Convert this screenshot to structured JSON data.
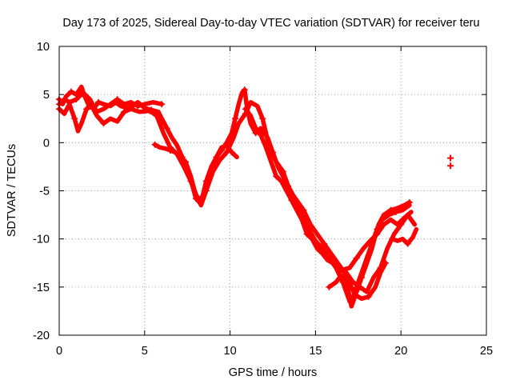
{
  "chart_data": {
    "type": "scatter",
    "title": "Day 173 of 2025, Sidereal Day-to-day VTEC variation (SDTVAR) for receiver teru",
    "xlabel": "GPS time / hours",
    "ylabel": "SDTVAR / TECUs",
    "xlim": [
      0,
      25
    ],
    "ylim": [
      -20,
      10
    ],
    "x_ticks": [
      0,
      5,
      10,
      15,
      20,
      25
    ],
    "y_ticks": [
      -20,
      -15,
      -10,
      -5,
      0,
      5,
      10
    ],
    "grid": true,
    "marker": "plus",
    "series": [
      {
        "name": "SDTVAR",
        "color": "#ff0000",
        "tracks": [
          [
            [
              0,
              4.5
            ],
            [
              0.2,
              4.0
            ],
            [
              0.4,
              4.8
            ],
            [
              0.7,
              5.3
            ],
            [
              1.0,
              5.0
            ],
            [
              1.3,
              5.8
            ],
            [
              1.5,
              4.8
            ],
            [
              1.7,
              4.0
            ],
            [
              2.0,
              3.5
            ],
            [
              2.3,
              4.2
            ],
            [
              2.6,
              4.0
            ],
            [
              3.0,
              3.8
            ],
            [
              3.3,
              4.2
            ],
            [
              3.6,
              3.8
            ],
            [
              4.0,
              3.6
            ],
            [
              4.3,
              3.8
            ],
            [
              4.6,
              4.2
            ],
            [
              5.0,
              3.6
            ],
            [
              5.4,
              3.4
            ],
            [
              5.8,
              3.2
            ],
            [
              6.0,
              2.5
            ],
            [
              6.3,
              1.5
            ],
            [
              6.6,
              0.5
            ],
            [
              6.9,
              -0.3
            ],
            [
              7.2,
              -1.5
            ],
            [
              7.5,
              -3.0
            ],
            [
              7.8,
              -4.5
            ],
            [
              8.0,
              -5.8
            ],
            [
              8.2,
              -6.2
            ],
            [
              8.4,
              -5.5
            ],
            [
              8.6,
              -4.0
            ],
            [
              8.9,
              -2.5
            ],
            [
              9.2,
              -1.5
            ],
            [
              9.5,
              -0.8
            ],
            [
              9.8,
              0.0
            ],
            [
              10.1,
              1.0
            ],
            [
              10.3,
              2.5
            ],
            [
              10.5,
              4.0
            ],
            [
              10.7,
              5.2
            ],
            [
              10.85,
              5.5
            ],
            [
              11.0,
              3.5
            ],
            [
              11.2,
              2.0
            ],
            [
              11.5,
              1.0
            ],
            [
              11.8,
              1.5
            ],
            [
              12.2,
              0.5
            ],
            [
              12.5,
              -1.0
            ],
            [
              12.8,
              -2.5
            ],
            [
              13.1,
              -3.5
            ],
            [
              13.4,
              -4.5
            ],
            [
              13.7,
              -5.5
            ],
            [
              14.0,
              -6.5
            ],
            [
              14.3,
              -7.8
            ],
            [
              14.6,
              -9.0
            ],
            [
              15.0,
              -10.2
            ],
            [
              15.4,
              -11.0
            ],
            [
              15.8,
              -12.0
            ],
            [
              16.2,
              -13.0
            ],
            [
              16.6,
              -14.5
            ],
            [
              17.0,
              -16.5
            ],
            [
              17.2,
              -16.0
            ],
            [
              17.5,
              -14.5
            ],
            [
              17.8,
              -13.0
            ],
            [
              18.1,
              -11.5
            ],
            [
              18.4,
              -10.0
            ],
            [
              18.7,
              -8.5
            ],
            [
              19.0,
              -7.5
            ],
            [
              19.4,
              -7.0
            ],
            [
              19.8,
              -6.8
            ],
            [
              20.2,
              -6.5
            ],
            [
              20.5,
              -6.2
            ]
          ],
          [
            [
              0,
              3.5
            ],
            [
              0.3,
              3.0
            ],
            [
              0.6,
              4.0
            ],
            [
              0.9,
              2.5
            ],
            [
              1.1,
              1.2
            ],
            [
              1.3,
              2.0
            ],
            [
              1.6,
              3.5
            ],
            [
              1.9,
              3.8
            ],
            [
              2.2,
              2.8
            ],
            [
              2.6,
              2.0
            ],
            [
              3.0,
              2.5
            ],
            [
              3.4,
              2.2
            ],
            [
              3.8,
              3.2
            ],
            [
              4.2,
              3.5
            ],
            [
              4.7,
              3.2
            ],
            [
              5.3,
              3.3
            ],
            [
              5.7,
              2.8
            ],
            [
              6.1,
              1.0
            ],
            [
              6.5,
              -0.5
            ],
            [
              6.9,
              -1.2
            ],
            [
              7.3,
              -2.5
            ],
            [
              7.7,
              -4.0
            ],
            [
              8.1,
              -5.8
            ],
            [
              8.3,
              -6.5
            ],
            [
              8.6,
              -5.0
            ],
            [
              9.0,
              -3.0
            ],
            [
              9.4,
              -1.8
            ],
            [
              9.8,
              -1.0
            ],
            [
              10.2,
              0.5
            ],
            [
              10.5,
              2.0
            ],
            [
              10.9,
              3.0
            ],
            [
              11.2,
              4.2
            ],
            [
              11.6,
              3.8
            ],
            [
              11.9,
              2.5
            ],
            [
              12.3,
              -0.5
            ],
            [
              12.7,
              -2.0
            ],
            [
              13.1,
              -3.0
            ],
            [
              13.5,
              -5.0
            ],
            [
              13.9,
              -6.0
            ],
            [
              14.3,
              -7.0
            ],
            [
              14.7,
              -8.5
            ],
            [
              15.1,
              -9.5
            ],
            [
              15.5,
              -10.5
            ],
            [
              15.9,
              -11.5
            ],
            [
              16.3,
              -12.5
            ],
            [
              16.7,
              -13.5
            ],
            [
              17.1,
              -17.0
            ],
            [
              17.4,
              -15.5
            ],
            [
              17.7,
              -14.0
            ],
            [
              18.0,
              -12.5
            ],
            [
              18.3,
              -11.0
            ],
            [
              18.6,
              -9.0
            ],
            [
              18.9,
              -8.0
            ],
            [
              19.3,
              -7.5
            ],
            [
              19.7,
              -7.2
            ],
            [
              20.1,
              -7.0
            ],
            [
              20.5,
              -6.5
            ]
          ],
          [
            [
              0,
              4.0
            ],
            [
              0.3,
              4.5
            ],
            [
              0.6,
              4.2
            ],
            [
              1.0,
              4.5
            ],
            [
              1.4,
              5.2
            ],
            [
              1.8,
              4.5
            ],
            [
              2.2,
              3.2
            ],
            [
              2.6,
              3.5
            ],
            [
              3.0,
              4.0
            ],
            [
              3.4,
              4.5
            ],
            [
              3.8,
              4.0
            ],
            [
              4.2,
              4.2
            ],
            [
              4.6,
              3.8
            ],
            [
              5.0,
              4.0
            ],
            [
              5.5,
              4.2
            ],
            [
              6.0,
              4.0
            ]
          ],
          [
            [
              5.6,
              -0.2
            ],
            [
              5.9,
              -0.5
            ],
            [
              6.2,
              -0.6
            ],
            [
              6.5,
              -0.8
            ],
            [
              6.8,
              -1.0
            ],
            [
              7.1,
              -1.5
            ],
            [
              7.4,
              -2.0
            ],
            [
              7.7,
              -3.5
            ],
            [
              8.0,
              -5.5
            ],
            [
              8.3,
              -6.0
            ],
            [
              8.6,
              -4.5
            ],
            [
              8.9,
              -3.0
            ],
            [
              9.2,
              -1.5
            ],
            [
              9.5,
              -0.5
            ],
            [
              9.8,
              -0.3
            ],
            [
              10.1,
              -1.0
            ],
            [
              10.4,
              -1.5
            ]
          ],
          [
            [
              10.9,
              3.5
            ],
            [
              11.2,
              2.8
            ],
            [
              11.5,
              1.5
            ],
            [
              11.8,
              0.8
            ],
            [
              12.1,
              -0.5
            ],
            [
              12.4,
              -2.0
            ],
            [
              12.7,
              -3.5
            ],
            [
              13.0,
              -4.0
            ],
            [
              13.3,
              -5.0
            ],
            [
              13.6,
              -6.0
            ],
            [
              13.9,
              -7.0
            ],
            [
              14.2,
              -8.0
            ],
            [
              14.5,
              -9.5
            ],
            [
              14.8,
              -10.0
            ],
            [
              15.1,
              -11.0
            ],
            [
              15.4,
              -11.5
            ],
            [
              15.7,
              -12.2
            ],
            [
              16.0,
              -12.5
            ],
            [
              16.4,
              -13.2
            ],
            [
              16.8,
              -13.5
            ],
            [
              17.2,
              -14.5
            ],
            [
              17.6,
              -15.0
            ],
            [
              18.0,
              -15.5
            ],
            [
              18.4,
              -14.0
            ],
            [
              18.8,
              -13.0
            ],
            [
              19.2,
              -11.0
            ],
            [
              19.6,
              -9.5
            ],
            [
              20.0,
              -8.5
            ],
            [
              20.4,
              -7.5
            ],
            [
              20.8,
              -8.5
            ]
          ],
          [
            [
              15.8,
              -15.0
            ],
            [
              16.2,
              -14.5
            ],
            [
              16.5,
              -13.8
            ],
            [
              16.9,
              -14.2
            ],
            [
              17.3,
              -15.8
            ],
            [
              17.7,
              -16.2
            ],
            [
              18.1,
              -16.0
            ],
            [
              18.5,
              -15.0
            ],
            [
              18.8,
              -13.5
            ],
            [
              19.1,
              -12.5
            ]
          ],
          [
            [
              16.2,
              -12.8
            ],
            [
              16.6,
              -13.2
            ],
            [
              17.0,
              -13.0
            ],
            [
              17.4,
              -12.0
            ],
            [
              17.8,
              -11.0
            ],
            [
              18.2,
              -10.2
            ],
            [
              18.6,
              -9.5
            ],
            [
              19.0,
              -8.5
            ],
            [
              19.4,
              -8.0
            ],
            [
              19.8,
              -8.5
            ],
            [
              20.2,
              -7.8
            ],
            [
              20.6,
              -7.2
            ]
          ],
          [
            [
              19.5,
              -10.0
            ],
            [
              19.8,
              -10.2
            ],
            [
              20.1,
              -10.0
            ],
            [
              20.4,
              -10.5
            ],
            [
              20.7,
              -9.8
            ],
            [
              20.9,
              -9.0
            ]
          ]
        ],
        "points": [
          [
            22.9,
            -1.6
          ],
          [
            22.9,
            -2.4
          ]
        ]
      }
    ]
  }
}
